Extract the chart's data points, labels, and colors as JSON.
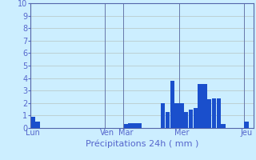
{
  "title": "",
  "xlabel": "Précipitations 24h ( mm )",
  "ylabel": "",
  "ylim": [
    0,
    10
  ],
  "yticks": [
    0,
    1,
    2,
    3,
    4,
    5,
    6,
    7,
    8,
    9,
    10
  ],
  "background_color": "#cceeff",
  "bar_color": "#1a4fcc",
  "grid_color": "#bbcccc",
  "axis_color": "#5566aa",
  "tick_label_color": "#5566cc",
  "xlabel_color": "#5566cc",
  "day_labels": [
    "Lun",
    "Ven",
    "Mar",
    "Mer",
    "Jeu"
  ],
  "day_positions": [
    0,
    16,
    20,
    32,
    46
  ],
  "day_line_color": "#6677aa",
  "n_bars": 48,
  "values": [
    0.9,
    0.5,
    0.0,
    0.0,
    0.0,
    0.0,
    0.0,
    0.0,
    0.0,
    0.0,
    0.0,
    0.0,
    0.0,
    0.0,
    0.0,
    0.0,
    0.0,
    0.0,
    0.0,
    0.0,
    0.3,
    0.4,
    0.4,
    0.4,
    0.0,
    0.0,
    0.0,
    0.0,
    2.0,
    1.3,
    3.8,
    2.0,
    2.0,
    1.3,
    1.5,
    1.6,
    3.5,
    3.5,
    2.3,
    2.4,
    2.4,
    0.3,
    0.0,
    0.0,
    0.0,
    0.0,
    0.5,
    0.0
  ]
}
